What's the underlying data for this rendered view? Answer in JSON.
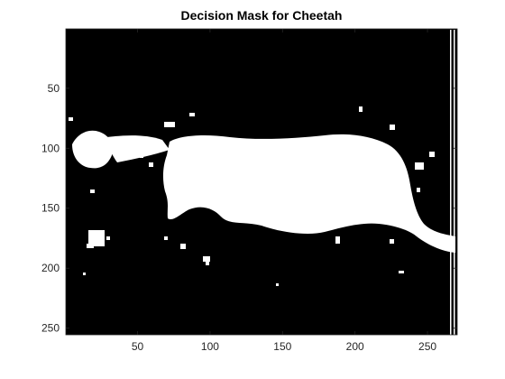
{
  "figure": {
    "title": "Decision Mask for Cheetah"
  },
  "image": {
    "rows": 255,
    "cols": 270,
    "colormap": [
      "#000000",
      "#ffffff"
    ],
    "content": "binary segmentation mask: white foreground cheetah silhouette on black background"
  },
  "axes": {
    "x_ticks": [
      50,
      100,
      150,
      200,
      250
    ],
    "y_ticks": [
      50,
      100,
      150,
      200,
      250
    ],
    "xlim": [
      0.5,
      270.5
    ],
    "ylim": [
      0.5,
      255.5
    ],
    "y_direction": "reverse",
    "box": true
  }
}
